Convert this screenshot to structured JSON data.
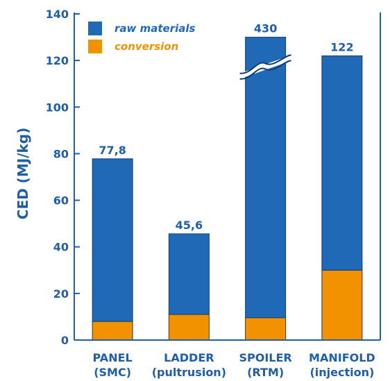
{
  "chart_data": {
    "type": "bar",
    "stacked": true,
    "title": "",
    "xlabel": "",
    "ylabel": "CED (MJ/kg)",
    "ylim": [
      0,
      140
    ],
    "yticks": [
      0,
      20,
      40,
      60,
      80,
      100,
      120,
      140
    ],
    "grid": false,
    "legend_position": "top-left",
    "categories": [
      [
        "PANEL",
        "(SMC)"
      ],
      [
        "LADDER",
        "(pultrusion)"
      ],
      [
        "SPOILER",
        "(RTM)"
      ],
      [
        "MANIFOLD",
        "(injection)"
      ]
    ],
    "series": [
      {
        "name": "conversion",
        "color": "#f39200",
        "values": [
          8,
          11,
          9.6,
          30
        ]
      },
      {
        "name": "raw materials",
        "color": "#1f69b6",
        "values": [
          69.8,
          34.6,
          420.4,
          92
        ]
      }
    ],
    "totals": [
      77.8,
      45.6,
      430,
      122
    ],
    "data_labels": [
      "77,8",
      "45,6",
      "430",
      "122"
    ],
    "axis_break": {
      "category": "SPOILER",
      "shown_total": 130
    },
    "colors": {
      "axis_text": "#1f5fa8",
      "label_text": "#1f5fa8"
    }
  }
}
